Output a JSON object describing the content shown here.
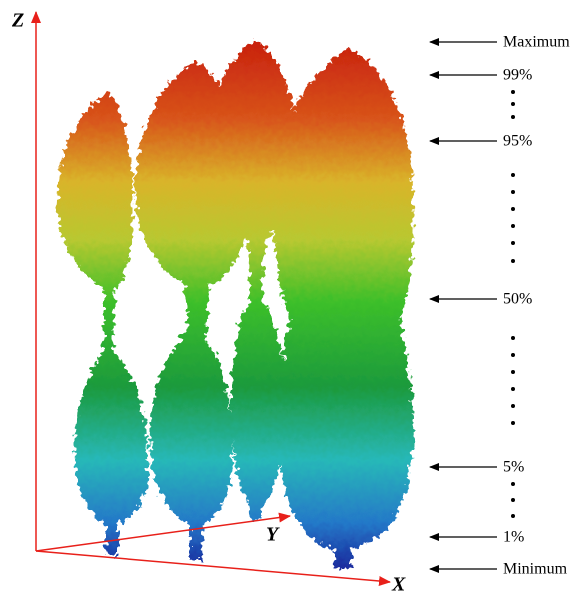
{
  "axes": {
    "z": "Z",
    "y": "Y",
    "x": "X"
  },
  "levels": [
    "Maximum",
    "99%",
    "95%",
    "50%",
    "5%",
    "1%",
    "Minimum"
  ]
}
